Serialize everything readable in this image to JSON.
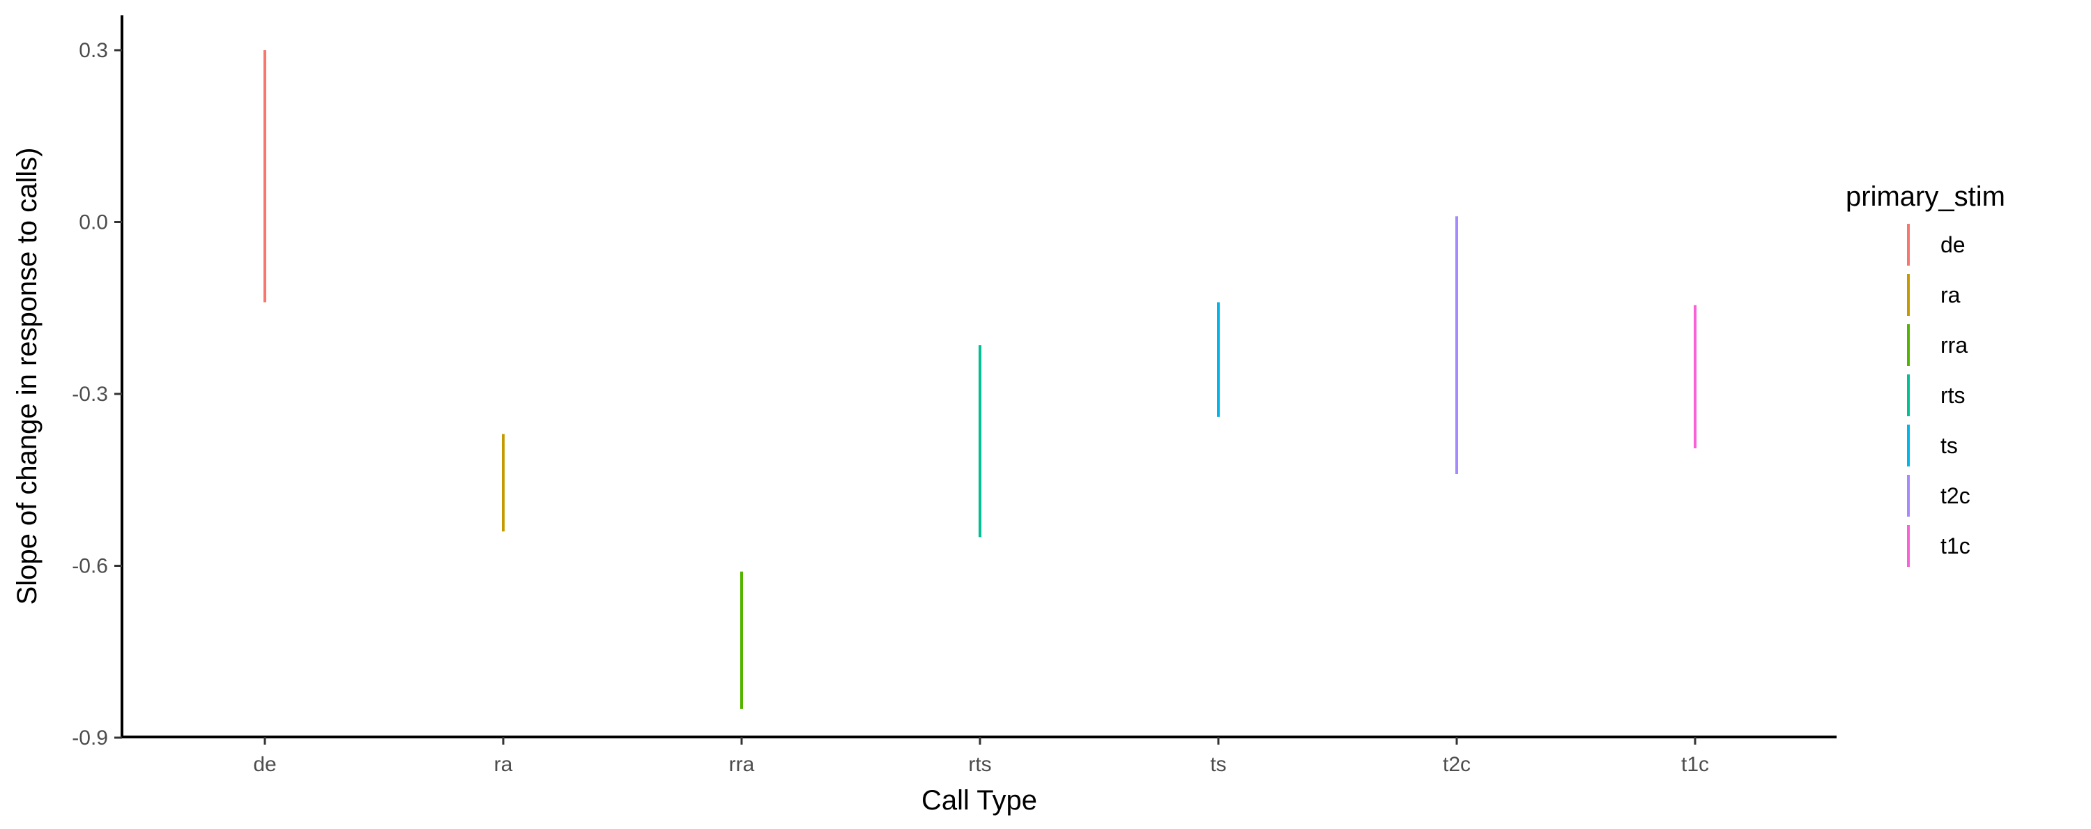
{
  "chart_data": {
    "type": "errorbar",
    "xlabel": "Call Type",
    "ylabel": "Slope of change in response to calls)",
    "categories": [
      "de",
      "ra",
      "rra",
      "rts",
      "ts",
      "t2c",
      "t1c"
    ],
    "ylim": [
      -0.91,
      0.36
    ],
    "yticks": [
      0.3,
      0.0,
      -0.3,
      -0.6,
      -0.9
    ],
    "ytick_labels": [
      "0.3",
      "0.0",
      "-0.3",
      "-0.6",
      "-0.9"
    ],
    "grid": false,
    "legend": {
      "title": "primary_stim",
      "position": "right",
      "entries": [
        "de",
        "ra",
        "rra",
        "rts",
        "ts",
        "t2c",
        "t1c"
      ]
    },
    "series": [
      {
        "category": "de",
        "low": -0.14,
        "high": 0.3,
        "color": "#F8766D"
      },
      {
        "category": "ra",
        "low": -0.54,
        "high": -0.37,
        "color": "#C49A00"
      },
      {
        "category": "rra",
        "low": -0.85,
        "high": -0.61,
        "color": "#53B400"
      },
      {
        "category": "rts",
        "low": -0.55,
        "high": -0.215,
        "color": "#00C094"
      },
      {
        "category": "ts",
        "low": -0.34,
        "high": -0.14,
        "color": "#00B6EB"
      },
      {
        "category": "t2c",
        "low": -0.44,
        "high": 0.01,
        "color": "#A58AFF"
      },
      {
        "category": "t1c",
        "low": -0.395,
        "high": -0.145,
        "color": "#FB61D7"
      }
    ]
  }
}
